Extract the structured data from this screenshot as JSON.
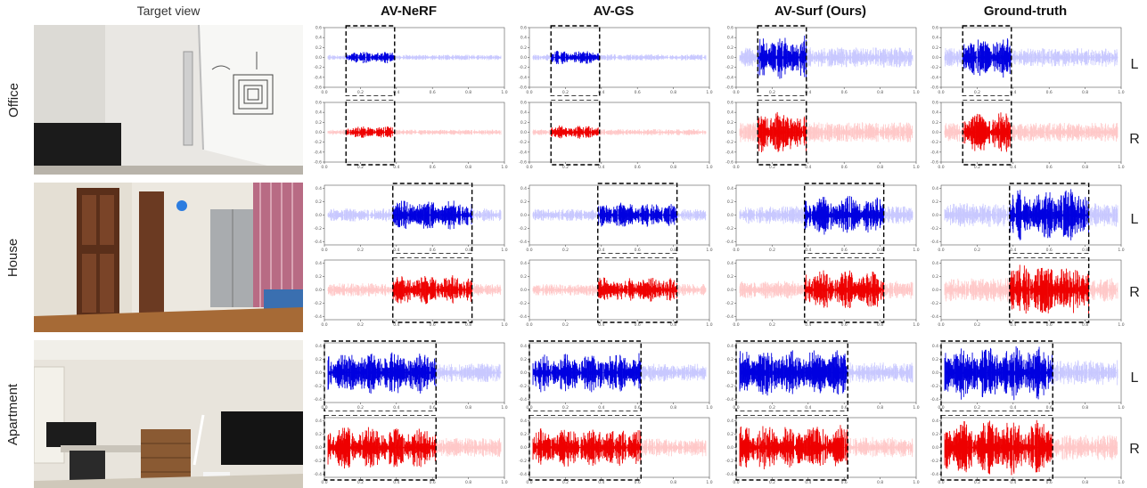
{
  "header": {
    "target_view": "Target view",
    "methods": [
      "AV-NeRF",
      "AV-GS",
      "AV-Surf (Ours)",
      "Ground-truth"
    ]
  },
  "rows": [
    {
      "label": "Office"
    },
    {
      "label": "House"
    },
    {
      "label": "Apartment"
    }
  ],
  "channels": [
    "L",
    "R"
  ],
  "colors": {
    "left_channel": "#0000e0",
    "left_channel_faded": "#c8c8ff",
    "right_channel": "#ee0000",
    "right_channel_faded": "#ffc8c8",
    "highlight_box": "#000000"
  },
  "chart_data": {
    "type": "line",
    "description": "Binaural waveform plots (amplitude vs normalized time) per scene, method and channel; dashed box highlights compared segment",
    "x_ticks": [
      "0.0",
      "0.2",
      "0.4",
      "0.6",
      "0.8",
      "1.0"
    ],
    "xlim": [
      0,
      1
    ],
    "scenes": [
      {
        "name": "Office",
        "y_ticks": [
          "0.6",
          "0.4",
          "0.2",
          "0.0",
          "-0.2",
          "-0.4",
          "-0.6"
        ],
        "ylim": [
          -0.6,
          0.6
        ],
        "highlight_x": [
          0.12,
          0.39
        ],
        "peak_amplitude": {
          "AV-NeRF": 0.12,
          "AV-GS": 0.14,
          "AV-Surf (Ours)": 0.45,
          "Ground-truth": 0.42
        }
      },
      {
        "name": "House",
        "y_ticks": [
          "0.4",
          "0.2",
          "0.0",
          "-0.2",
          "-0.4"
        ],
        "ylim": [
          -0.45,
          0.45
        ],
        "highlight_x": [
          0.38,
          0.82
        ],
        "peak_amplitude": {
          "AV-NeRF": 0.22,
          "AV-GS": 0.2,
          "AV-Surf (Ours)": 0.3,
          "Ground-truth": 0.4
        }
      },
      {
        "name": "Apartment",
        "y_ticks": [
          "0.4",
          "0.2",
          "0.0",
          "-0.2",
          "-0.4"
        ],
        "ylim": [
          -0.45,
          0.45
        ],
        "highlight_x": [
          0.0,
          0.62
        ],
        "peak_amplitude": {
          "AV-NeRF": 0.32,
          "AV-GS": 0.3,
          "AV-Surf (Ours)": 0.35,
          "Ground-truth": 0.42
        }
      }
    ]
  }
}
